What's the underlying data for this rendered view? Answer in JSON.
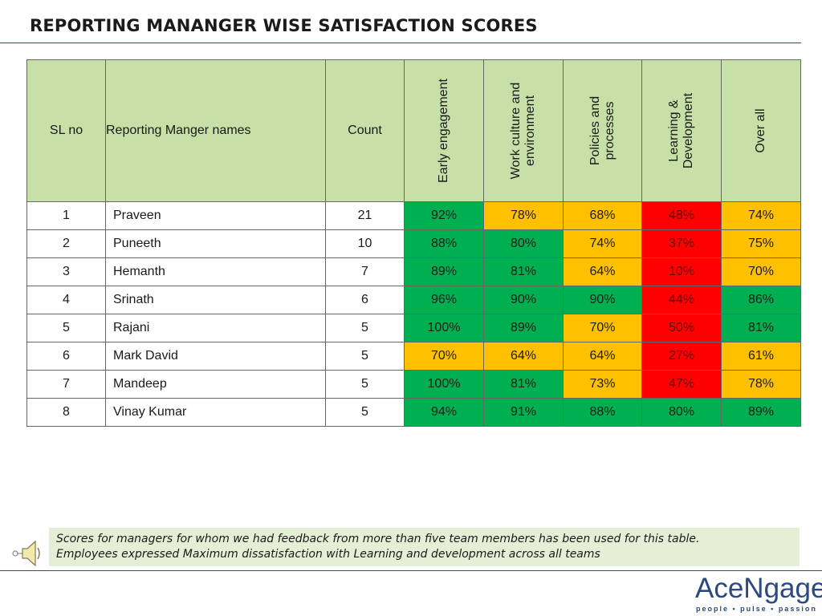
{
  "title": "REPORTING MANANGER WISE SATISFACTION SCORES",
  "table": {
    "headers": {
      "sl_no": "SL no",
      "manager": "Reporting Manger names",
      "count": "Count",
      "early": "Early engagement",
      "work": "Work culture and environment",
      "policies": "Policies and processes",
      "learning": "Learning & Development",
      "overall": "Over all"
    },
    "rows": [
      {
        "sl": "1",
        "name": "Praveen",
        "count": "21",
        "early": "92%",
        "work": "78%",
        "policies": "68%",
        "learning": "48%",
        "overall": "74%"
      },
      {
        "sl": "2",
        "name": "Puneeth",
        "count": "10",
        "early": "88%",
        "work": "80%",
        "policies": "74%",
        "learning": "37%",
        "overall": "75%"
      },
      {
        "sl": "3",
        "name": "Hemanth",
        "count": "7",
        "early": "89%",
        "work": "81%",
        "policies": "64%",
        "learning": "10%",
        "overall": "70%"
      },
      {
        "sl": "4",
        "name": "Srinath",
        "count": "6",
        "early": "96%",
        "work": "90%",
        "policies": "90%",
        "learning": "44%",
        "overall": "86%"
      },
      {
        "sl": "5",
        "name": "Rajani",
        "count": "5",
        "early": "100%",
        "work": "89%",
        "policies": "70%",
        "learning": "50%",
        "overall": "81%"
      },
      {
        "sl": "6",
        "name": "Mark David",
        "count": "5",
        "early": "70%",
        "work": "64%",
        "policies": "64%",
        "learning": "27%",
        "overall": "61%"
      },
      {
        "sl": "7",
        "name": "Mandeep",
        "count": "5",
        "early": "100%",
        "work": "81%",
        "policies": "73%",
        "learning": "47%",
        "overall": "78%"
      },
      {
        "sl": "8",
        "name": "Vinay Kumar",
        "count": "5",
        "early": "94%",
        "work": "91%",
        "policies": "88%",
        "learning": "80%",
        "overall": "89%"
      }
    ],
    "cell_colors": {
      "green": "#00b050",
      "amber": "#ffc000",
      "red": "#ff0000",
      "header": "#c6e0a8"
    }
  },
  "note": {
    "line1": "Scores for managers for whom we had feedback from more than five team members has been used for this table.",
    "line2": "Employees expressed Maximum dissatisfaction with Learning and development across all teams",
    "icon": "speaker-icon"
  },
  "logo": {
    "word": "AceNgage",
    "tagline": "people • pulse • passion"
  }
}
